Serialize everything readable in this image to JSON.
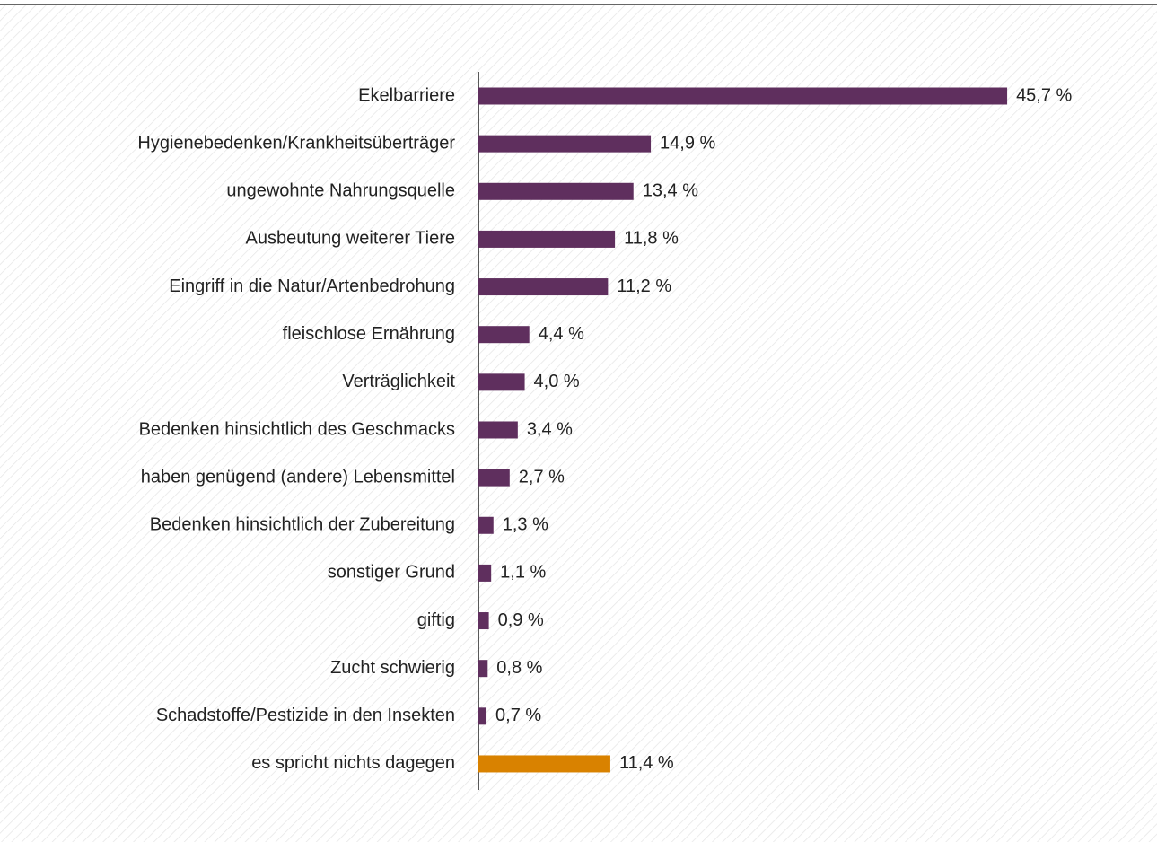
{
  "chart_data": {
    "type": "barh",
    "categories": [
      "Ekelbarriere",
      "Hygienebedenken/Krankheitsüberträger",
      "ungewohnte Nahrungsquelle",
      "Ausbeutung weiterer Tiere",
      "Eingriff in die Natur/Artenbedrohung",
      "fleischlose Ernährung",
      "Verträglichkeit",
      "Bedenken hinsichtlich des Geschmacks",
      "haben genügend (andere) Lebensmittel",
      "Bedenken hinsichtlich der Zubereitung",
      "sonstiger Grund",
      "giftig",
      "Zucht schwierig",
      "Schadstoffe/Pestizide in den Insekten",
      "es spricht nichts dagegen"
    ],
    "values": [
      45.7,
      14.9,
      13.4,
      11.8,
      11.2,
      4.4,
      4.0,
      3.4,
      2.7,
      1.3,
      1.1,
      0.9,
      0.8,
      0.7,
      11.4
    ],
    "value_labels": [
      "45,7 %",
      "14,9 %",
      "13,4 %",
      "11,8 %",
      "11,2 %",
      "4,4 %",
      "4,0 %",
      "3,4 %",
      "2,7 %",
      "1,3 %",
      "1,1 %",
      "0,9 %",
      "0,8 %",
      "0,7 %",
      "11,4 %"
    ],
    "colors": [
      "#5f2f5e",
      "#5f2f5e",
      "#5f2f5e",
      "#5f2f5e",
      "#5f2f5e",
      "#5f2f5e",
      "#5f2f5e",
      "#5f2f5e",
      "#5f2f5e",
      "#5f2f5e",
      "#5f2f5e",
      "#5f2f5e",
      "#5f2f5e",
      "#5f2f5e",
      "#d98200"
    ],
    "xlim": [
      0,
      50
    ]
  }
}
